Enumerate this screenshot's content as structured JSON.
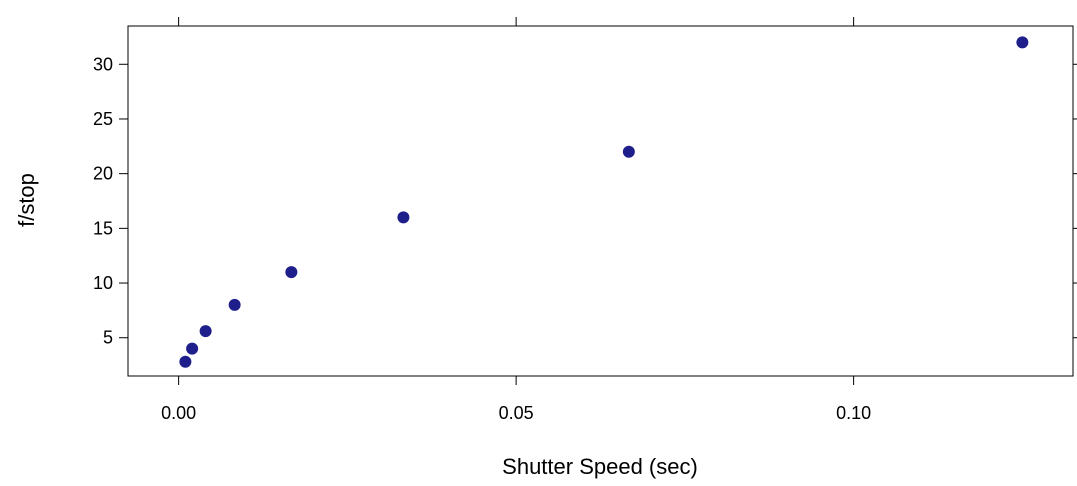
{
  "chart_data": {
    "type": "scatter",
    "xlabel": "Shutter Speed (sec)",
    "ylabel": "f/stop",
    "xlim": [
      -0.0075,
      0.1325
    ],
    "ylim": [
      1.5,
      33.5
    ],
    "xticks": [
      0.0,
      0.05,
      0.1
    ],
    "xtick_labels": [
      "0.00",
      "0.05",
      "0.10"
    ],
    "yticks": [
      5,
      10,
      15,
      20,
      25,
      30
    ],
    "ytick_labels": [
      "5",
      "10",
      "15",
      "20",
      "25",
      "30"
    ],
    "grid": false,
    "marker_color": "#1f1f8c",
    "points": [
      {
        "x": 0.001,
        "y": 2.8
      },
      {
        "x": 0.002,
        "y": 4.0
      },
      {
        "x": 0.004,
        "y": 5.6
      },
      {
        "x": 0.0083,
        "y": 8.0
      },
      {
        "x": 0.0167,
        "y": 11.0
      },
      {
        "x": 0.0333,
        "y": 16.0
      },
      {
        "x": 0.0667,
        "y": 22.0
      },
      {
        "x": 0.125,
        "y": 32.0
      }
    ]
  }
}
